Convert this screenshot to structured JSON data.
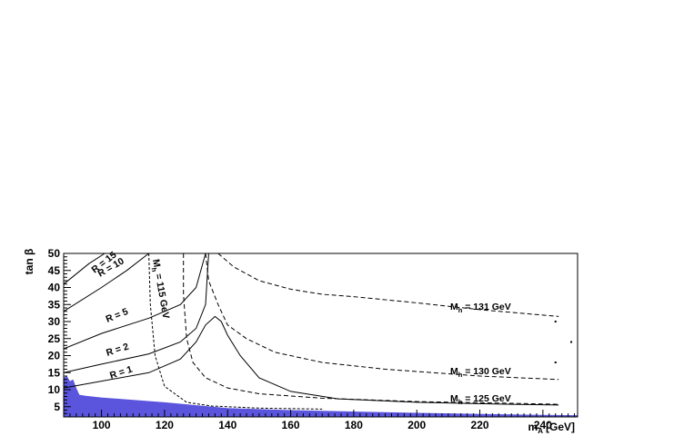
{
  "chart_data": {
    "type": "line",
    "title": "",
    "xlabel": "m_A [GeV]",
    "xlabel_main": "m",
    "xlabel_sub": "A",
    "xlabel_unit": "[GeV]",
    "ylabel": "tan β",
    "xlim": [
      88,
      251
    ],
    "ylim": [
      2,
      50
    ],
    "x_ticks": [
      100,
      120,
      140,
      160,
      180,
      200,
      220,
      240
    ],
    "y_ticks": [
      5,
      10,
      15,
      20,
      25,
      30,
      35,
      40,
      45,
      50
    ],
    "grid": false,
    "excluded_region": {
      "color": "#5a55dc",
      "boundary": [
        [
          88,
          13.5
        ],
        [
          89,
          14
        ],
        [
          90,
          12.5
        ],
        [
          91,
          13
        ],
        [
          92,
          10.5
        ],
        [
          93,
          8.5
        ],
        [
          95,
          8.2
        ],
        [
          100,
          7.7
        ],
        [
          120,
          6.3
        ],
        [
          140,
          4.6
        ],
        [
          160,
          4.0
        ],
        [
          200,
          3.2
        ],
        [
          240,
          2.6
        ],
        [
          251,
          2.5
        ]
      ]
    },
    "series": [
      {
        "name": "M_h = 131 GeV",
        "label_main": "M",
        "label_sub": "h",
        "label_rest": " = 131 GeV",
        "style": "dashed",
        "points": [
          [
            137,
            50
          ],
          [
            142,
            46
          ],
          [
            150,
            42
          ],
          [
            160,
            39.5
          ],
          [
            170,
            38
          ],
          [
            180,
            37.3
          ],
          [
            200,
            35.5
          ],
          [
            220,
            33.5
          ],
          [
            245,
            31.5
          ]
        ]
      },
      {
        "name": "M_h = 130 GeV",
        "label_main": "M",
        "label_sub": "h",
        "label_rest": " = 130 GeV",
        "style": "dashed",
        "points": [
          [
            133,
            50
          ],
          [
            134,
            42
          ],
          [
            137,
            35
          ],
          [
            140,
            29
          ],
          [
            146,
            25
          ],
          [
            155,
            21
          ],
          [
            170,
            18
          ],
          [
            190,
            16
          ],
          [
            220,
            14
          ],
          [
            245,
            13
          ]
        ]
      },
      {
        "name": "M_h = 125 GeV",
        "label_main": "M",
        "label_sub": "h",
        "label_rest": " = 125 GeV",
        "style": "dashed",
        "points": [
          [
            126,
            50
          ],
          [
            126,
            38
          ],
          [
            127,
            25
          ],
          [
            129,
            18
          ],
          [
            133,
            13.5
          ],
          [
            140,
            10.5
          ],
          [
            150,
            8.8
          ],
          [
            170,
            7.5
          ],
          [
            200,
            6.5
          ],
          [
            230,
            6.0
          ],
          [
            245,
            5.7
          ]
        ]
      },
      {
        "name": "M_h = 115 GeV",
        "label_main": "M",
        "label_sub": "h",
        "label_rest": " = 115 GeV",
        "style": "dotted",
        "points": [
          [
            115,
            50
          ],
          [
            115.5,
            35
          ],
          [
            117,
            20
          ],
          [
            120,
            11
          ],
          [
            127,
            6.3
          ],
          [
            135,
            5.2
          ],
          [
            150,
            4.6
          ],
          [
            170,
            4.3
          ]
        ]
      },
      {
        "name": "R = 15",
        "label": "R = 15",
        "style": "solid",
        "points": [
          [
            88,
            41
          ],
          [
            96,
            47
          ],
          [
            101,
            50
          ]
        ]
      },
      {
        "name": "R = 10",
        "label": "R = 10",
        "style": "solid",
        "points": [
          [
            88,
            33
          ],
          [
            100,
            40
          ],
          [
            108,
            45
          ],
          [
            115,
            50
          ]
        ]
      },
      {
        "name": "R = 5",
        "label": "R = 5",
        "style": "solid",
        "points": [
          [
            88,
            22
          ],
          [
            100,
            26.5
          ],
          [
            115,
            31
          ],
          [
            125,
            35
          ],
          [
            130,
            40
          ],
          [
            133,
            50
          ]
        ]
      },
      {
        "name": "R = 2",
        "label": "R = 2",
        "style": "solid",
        "points": [
          [
            88,
            15
          ],
          [
            100,
            17.5
          ],
          [
            115,
            20.5
          ],
          [
            125,
            24
          ],
          [
            130,
            28
          ],
          [
            133,
            35
          ],
          [
            134,
            50
          ]
        ]
      },
      {
        "name": "R = 1",
        "label": "R = 1",
        "style": "solid",
        "points": [
          [
            88,
            10.5
          ],
          [
            100,
            12.5
          ],
          [
            115,
            15
          ],
          [
            125,
            19
          ],
          [
            130,
            24
          ],
          [
            133,
            29
          ],
          [
            136,
            31.5
          ],
          [
            138,
            30
          ],
          [
            140,
            26
          ],
          [
            144,
            20
          ],
          [
            150,
            13.5
          ],
          [
            160,
            9.5
          ],
          [
            175,
            7.3
          ],
          [
            200,
            6.3
          ],
          [
            230,
            5.7
          ],
          [
            245,
            5.5
          ]
        ]
      }
    ],
    "stray_markers": [
      [
        244,
        30
      ],
      [
        244,
        18
      ],
      [
        249,
        24
      ]
    ]
  }
}
